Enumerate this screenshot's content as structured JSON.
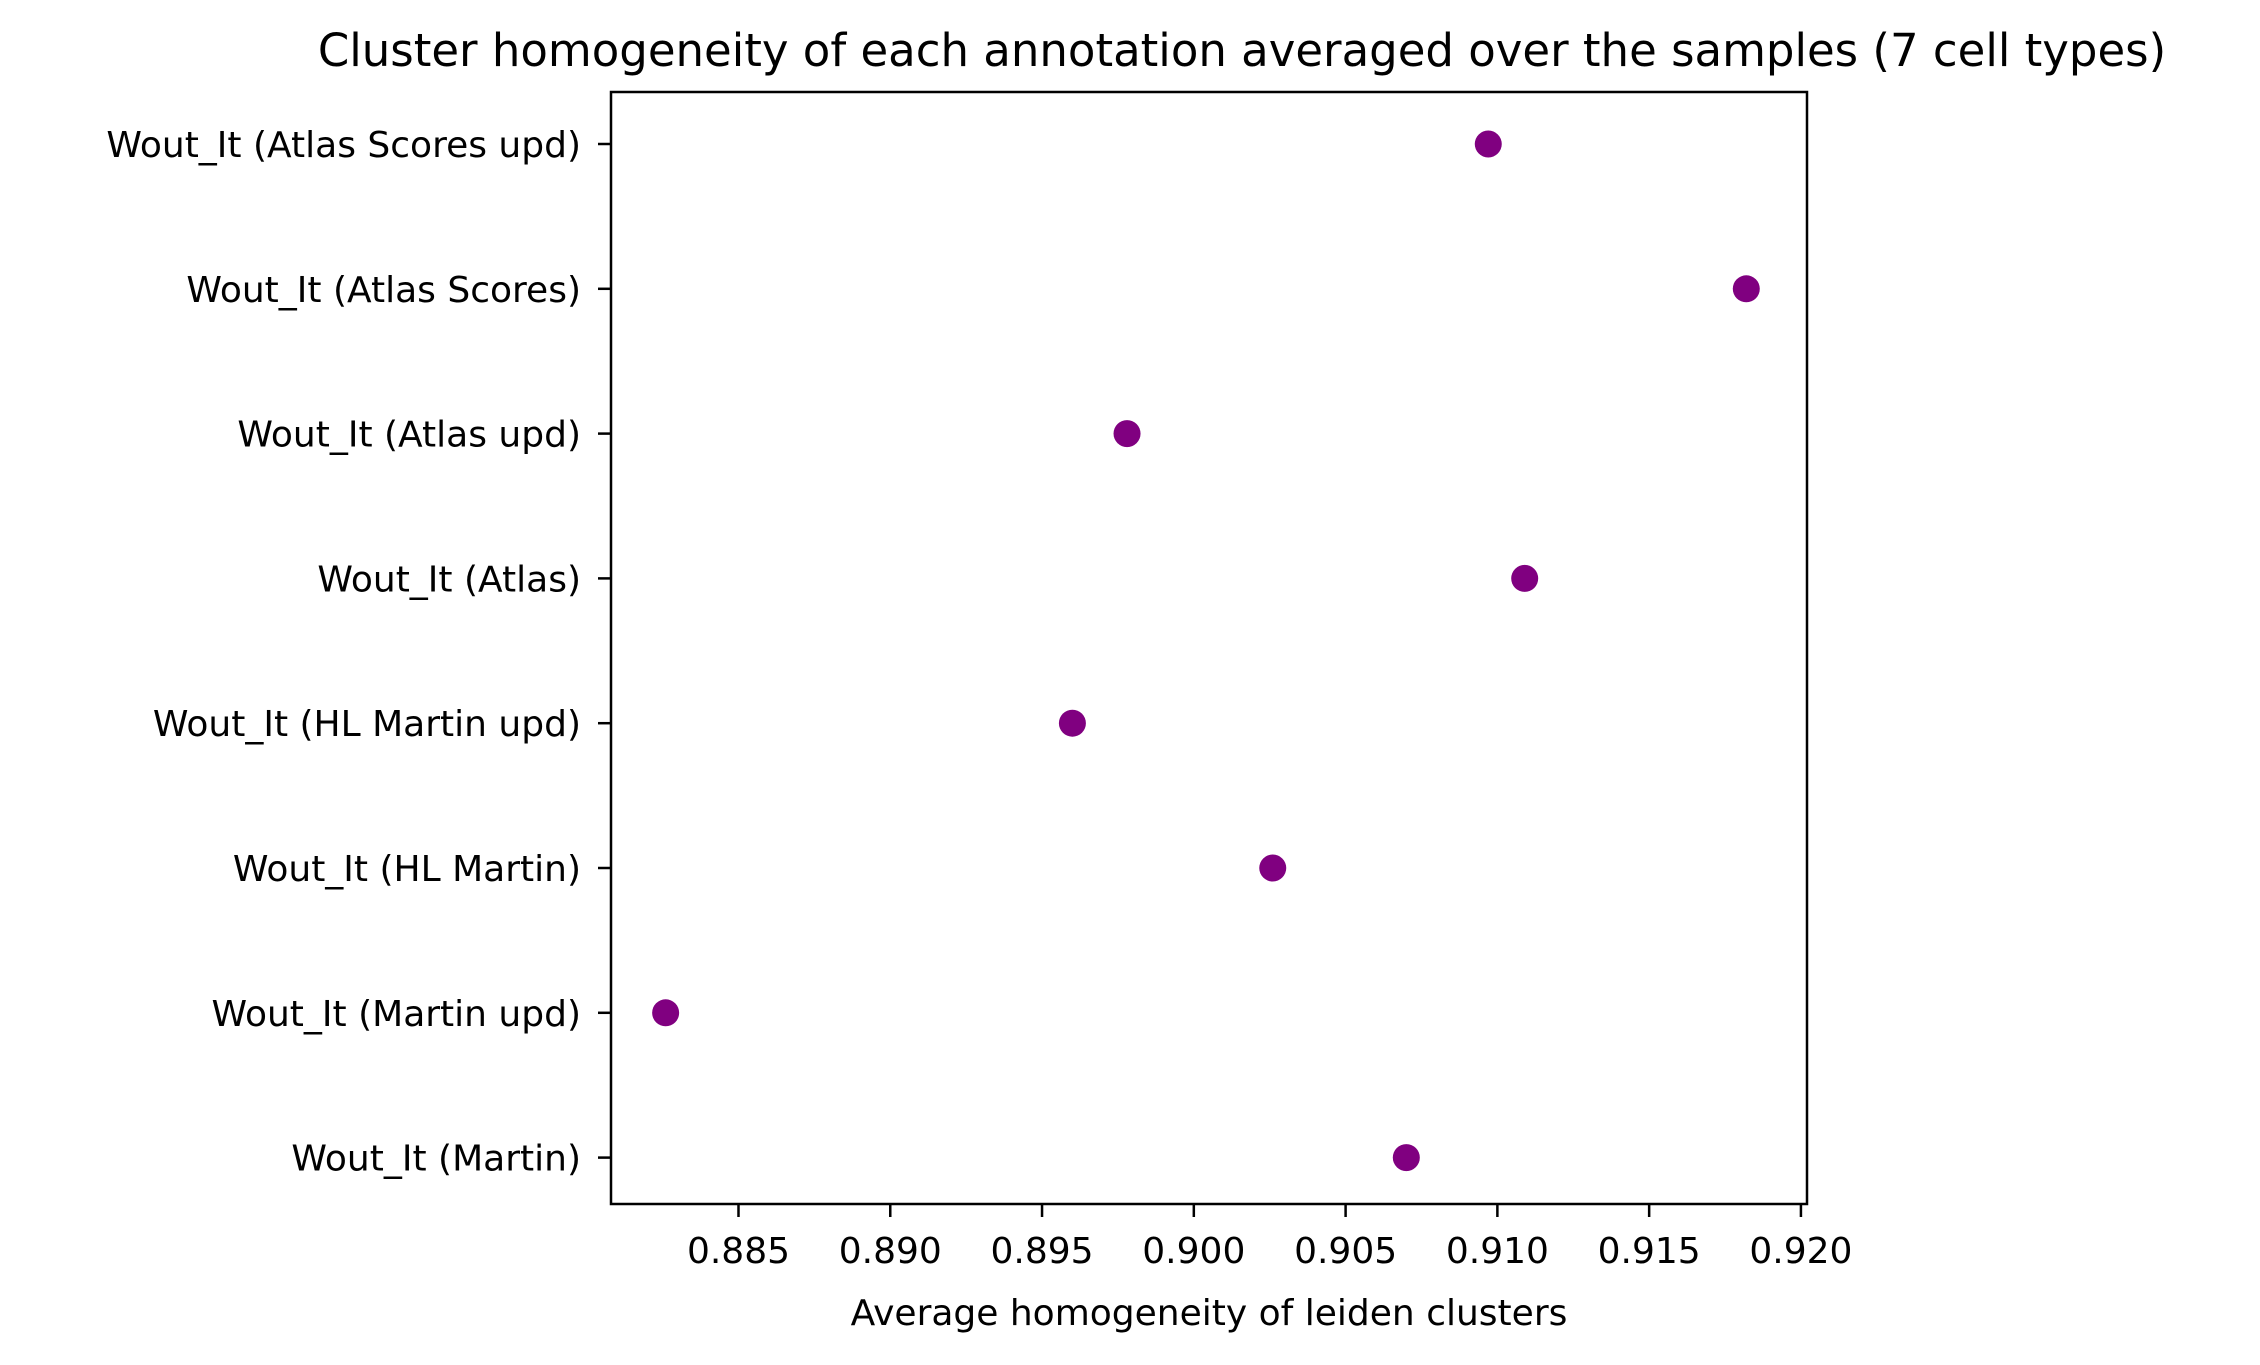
{
  "chart_data": {
    "type": "scatter",
    "title": "Cluster homogeneity of each annotation averaged over the samples (7 cell types)",
    "xlabel": "Average homogeneity of leiden clusters",
    "ylabel": "",
    "xlim": [
      0.8808,
      0.9202
    ],
    "xticks": [
      0.885,
      0.89,
      0.895,
      0.9,
      0.905,
      0.91,
      0.915,
      0.92
    ],
    "xtick_labels": [
      "0.885",
      "0.890",
      "0.895",
      "0.900",
      "0.905",
      "0.910",
      "0.915",
      "0.920"
    ],
    "categories": [
      "Wout_It (Atlas Scores upd)",
      "Wout_It (Atlas Scores)",
      "Wout_It (Atlas upd)",
      "Wout_It (Atlas)",
      "Wout_It (HL Martin upd)",
      "Wout_It (HL Martin)",
      "Wout_It (Martin upd)",
      "Wout_It (Martin)"
    ],
    "series": [
      {
        "values": [
          0.9097,
          0.9182,
          0.8978,
          0.9109,
          0.896,
          0.9026,
          0.8826,
          0.907
        ]
      }
    ],
    "marker_color": "#800080",
    "grid": false,
    "legend": false
  }
}
